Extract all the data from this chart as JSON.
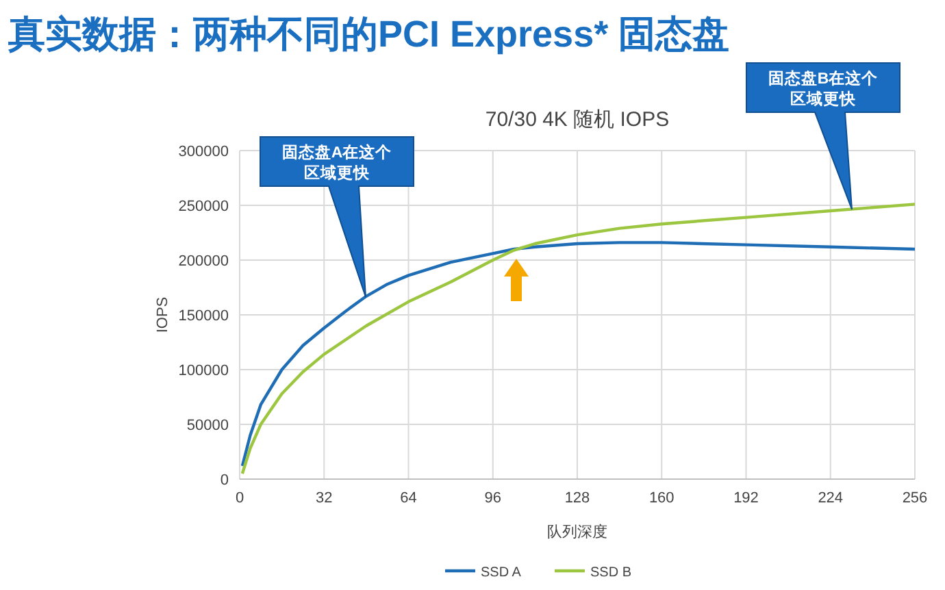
{
  "chart_data": {
    "type": "line",
    "title": "70/30 4K 随机 IOPS",
    "subtitle": "真实数据：两种不同的PCI Express* 固态盘",
    "xlabel": "队列深度",
    "ylabel": "IOPS",
    "xlim": [
      0,
      256
    ],
    "xticks": [
      0,
      32,
      64,
      96,
      128,
      160,
      192,
      224,
      256
    ],
    "ylim": [
      0,
      300000
    ],
    "yticks": [
      0,
      50000,
      100000,
      150000,
      200000,
      250000,
      300000
    ],
    "grid": true,
    "legend": "bottom",
    "marker": "none",
    "line_style": "solid",
    "series": [
      {
        "name": "SSD A",
        "color": "#1f6db5",
        "x": [
          1,
          4,
          8,
          16,
          24,
          32,
          40,
          48,
          56,
          64,
          80,
          96,
          104,
          112,
          128,
          144,
          160,
          192,
          224,
          256
        ],
        "values": [
          12000,
          40000,
          68000,
          100000,
          122000,
          138000,
          153000,
          167000,
          178000,
          186000,
          198000,
          206000,
          210000,
          212000,
          215000,
          216000,
          216000,
          214000,
          212000,
          210000
        ]
      },
      {
        "name": "SSD B",
        "color": "#9dc640",
        "x": [
          1,
          4,
          8,
          16,
          24,
          32,
          48,
          64,
          80,
          96,
          104,
          112,
          128,
          144,
          160,
          192,
          224,
          256
        ],
        "values": [
          5000,
          28000,
          50000,
          78000,
          98000,
          114000,
          140000,
          162000,
          180000,
          200000,
          209000,
          215000,
          223000,
          229000,
          233000,
          239000,
          245000,
          251000
        ]
      }
    ],
    "annotations": [
      "固态盘A在这个区域更快",
      "固态盘B在这个区域更快"
    ]
  }
}
